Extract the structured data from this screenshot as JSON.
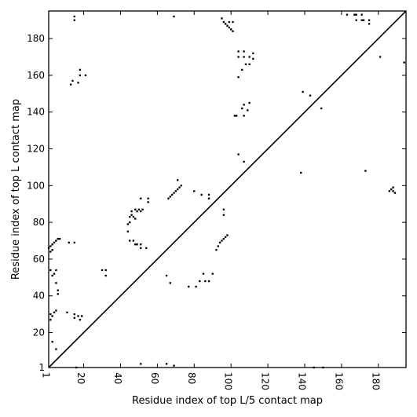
{
  "chart_data": {
    "type": "scatter",
    "title": "",
    "xlabel": "Residue index of top L/5 contact map",
    "ylabel": "Residue index of top L contact map",
    "xlim": [
      1,
      195
    ],
    "ylim": [
      1,
      195
    ],
    "x_ticks": [
      1,
      20,
      40,
      60,
      80,
      100,
      120,
      140,
      160,
      180
    ],
    "y_ticks": [
      1,
      20,
      40,
      60,
      80,
      100,
      120,
      140,
      160,
      180
    ],
    "grid": false,
    "legend": "none",
    "marker": "square",
    "marker_color": "#000000",
    "diagonal_line": {
      "from": [
        1,
        1
      ],
      "to": [
        195,
        195
      ],
      "color": "#000000"
    },
    "top_L5_contacts": [
      [
        16,
        1
      ],
      [
        51,
        3
      ],
      [
        65,
        3
      ],
      [
        69,
        2
      ],
      [
        77,
        45
      ],
      [
        81,
        45
      ],
      [
        83,
        48
      ],
      [
        86,
        48
      ],
      [
        88,
        48
      ],
      [
        85,
        52
      ],
      [
        90,
        52
      ],
      [
        65,
        51
      ],
      [
        67,
        47
      ],
      [
        92,
        65
      ],
      [
        93,
        67
      ],
      [
        94,
        69
      ],
      [
        95,
        70
      ],
      [
        96,
        71
      ],
      [
        97,
        72
      ],
      [
        98,
        73
      ],
      [
        96,
        84
      ],
      [
        96,
        87
      ],
      [
        88,
        93
      ],
      [
        88,
        95
      ],
      [
        84,
        95
      ],
      [
        66,
        93
      ],
      [
        67,
        94
      ],
      [
        68,
        95
      ],
      [
        69,
        96
      ],
      [
        70,
        97
      ],
      [
        71,
        98
      ],
      [
        72,
        99
      ],
      [
        73,
        100
      ],
      [
        71,
        103
      ],
      [
        80,
        97
      ],
      [
        102,
        138
      ],
      [
        103,
        138
      ],
      [
        106,
        142
      ],
      [
        109,
        141
      ],
      [
        107,
        144
      ],
      [
        110,
        145
      ],
      [
        107,
        138
      ],
      [
        104,
        117
      ],
      [
        107,
        113
      ],
      [
        104,
        159
      ],
      [
        106,
        163
      ],
      [
        108,
        166
      ],
      [
        110,
        166
      ],
      [
        104,
        170
      ],
      [
        107,
        170
      ],
      [
        110,
        170
      ],
      [
        104,
        173
      ],
      [
        107,
        173
      ],
      [
        112,
        169
      ],
      [
        112,
        172
      ],
      [
        101,
        184
      ],
      [
        100,
        185
      ],
      [
        99,
        186
      ],
      [
        98,
        187
      ],
      [
        97,
        188
      ],
      [
        96,
        189
      ],
      [
        99,
        189
      ],
      [
        95,
        191
      ],
      [
        101,
        189
      ],
      [
        69,
        192
      ],
      [
        138,
        107
      ],
      [
        139,
        151
      ],
      [
        143,
        149
      ],
      [
        149,
        142
      ],
      [
        173,
        108
      ],
      [
        186,
        97
      ],
      [
        187,
        98
      ],
      [
        188,
        97
      ],
      [
        188,
        99
      ],
      [
        189,
        96
      ],
      [
        181,
        170
      ],
      [
        194,
        167
      ]
    ],
    "top_L_contacts": [
      [
        1,
        66
      ],
      [
        2,
        67
      ],
      [
        3,
        68
      ],
      [
        4,
        69
      ],
      [
        5,
        70
      ],
      [
        6,
        71
      ],
      [
        7,
        71
      ],
      [
        2,
        64
      ],
      [
        3,
        65
      ],
      [
        3,
        51
      ],
      [
        4,
        52
      ],
      [
        5,
        47
      ],
      [
        6,
        43
      ],
      [
        6,
        41
      ],
      [
        2,
        54
      ],
      [
        5,
        54
      ],
      [
        2,
        30
      ],
      [
        3,
        29
      ],
      [
        4,
        31
      ],
      [
        5,
        32
      ],
      [
        3,
        15
      ],
      [
        2,
        27
      ],
      [
        5,
        11
      ],
      [
        11,
        31
      ],
      [
        15,
        28
      ],
      [
        15,
        30
      ],
      [
        17,
        29
      ],
      [
        18,
        27
      ],
      [
        19,
        29
      ],
      [
        12,
        69
      ],
      [
        15,
        69
      ],
      [
        13,
        155
      ],
      [
        14,
        157
      ],
      [
        15,
        190
      ],
      [
        15,
        192
      ],
      [
        17,
        156
      ],
      [
        18,
        160
      ],
      [
        18,
        163
      ],
      [
        21,
        160
      ],
      [
        30,
        54
      ],
      [
        32,
        51
      ],
      [
        32,
        54
      ],
      [
        44,
        75
      ],
      [
        44,
        79
      ],
      [
        45,
        80
      ],
      [
        45,
        83
      ],
      [
        46,
        84
      ],
      [
        46,
        86
      ],
      [
        47,
        83
      ],
      [
        48,
        82
      ],
      [
        48,
        87
      ],
      [
        49,
        86
      ],
      [
        50,
        87
      ],
      [
        51,
        86
      ],
      [
        52,
        87
      ],
      [
        51,
        93
      ],
      [
        55,
        91
      ],
      [
        55,
        93
      ],
      [
        45,
        70
      ],
      [
        47,
        70
      ],
      [
        48,
        68
      ],
      [
        49,
        68
      ],
      [
        51,
        68
      ],
      [
        51,
        66
      ],
      [
        54,
        66
      ],
      [
        145,
        1
      ],
      [
        150,
        1
      ]
    ],
    "top_L_contacts_upper": [
      [
        163,
        193
      ],
      [
        167,
        193
      ],
      [
        168,
        193
      ],
      [
        171,
        193
      ],
      [
        168,
        190
      ],
      [
        171,
        190
      ],
      [
        172,
        190
      ],
      [
        175,
        190
      ],
      [
        175,
        188
      ]
    ]
  }
}
